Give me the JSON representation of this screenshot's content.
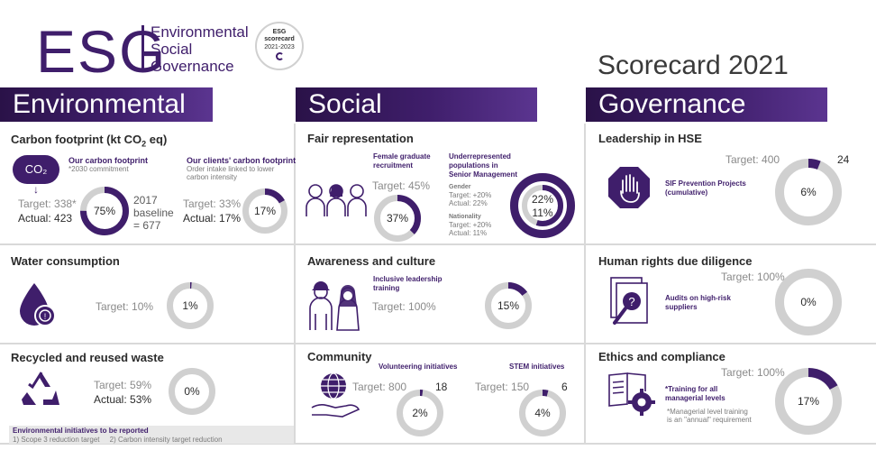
{
  "header": {
    "logo_letters": "ESG",
    "logo_words": [
      "Environmental",
      "Social",
      "Governance"
    ],
    "badge_lines": [
      "ESG",
      "scorecard",
      "2021-2023"
    ],
    "scorecard_title": "Scorecard 2021"
  },
  "colors": {
    "accent": "#3f1e6b",
    "ring_track": "#d0d0d0",
    "ring_fill": "#3f1e6b"
  },
  "sections": {
    "environmental": "Environmental",
    "social": "Social",
    "governance": "Governance"
  },
  "carbon": {
    "title_main": "Carbon footprint (kt CO",
    "title_sub": "2",
    "title_end": " eq)",
    "icon_label": "CO₂",
    "own_title": "Our carbon footprint",
    "own_note": "*2030 commitment",
    "own_target": "Target: 338*",
    "own_actual": "Actual: 423",
    "own_pct": "75%",
    "own_fill": 0.75,
    "baseline": [
      "2017",
      "baseline",
      "= 677"
    ],
    "clients_title": "Our clients' carbon footprint",
    "clients_note": [
      "Order intake linked to lower",
      "carbon intensity"
    ],
    "clients_target": "Target: 33%",
    "clients_actual": "Actual: 17%",
    "clients_pct": "17%",
    "clients_fill": 0.17
  },
  "water": {
    "title": "Water consumption",
    "target": "Target: 10%",
    "pct": "1%",
    "fill": 0.01
  },
  "waste": {
    "title": "Recycled and reused waste",
    "target": "Target: 59%",
    "actual": "Actual: 53%",
    "pct": "0%",
    "fill": 0.0
  },
  "env_footer": {
    "title": "Environmental initiatives to be reported",
    "items": "1) Scope 3 reduction target     2) Carbon intensity target reduction"
  },
  "fair": {
    "title": "Fair representation",
    "female_title": [
      "Female graduate",
      "recruitment"
    ],
    "female_target": "Target: 45%",
    "female_pct": "37%",
    "female_fill": 0.37,
    "under_title": [
      "Underrepresented",
      "populations in",
      "Senior Management"
    ],
    "gender_label": "Gender",
    "gender_target": "Target: +20%",
    "gender_actual": "Actual: 22%",
    "nationality_label": "Nationality",
    "nationality_target": "Target: +20%",
    "nationality_actual": "Actual: 11%",
    "gender_pct": "22%",
    "gender_fill": 1.0,
    "nationality_pct": "11%",
    "nationality_fill": 0.55
  },
  "awareness": {
    "title": "Awareness and culture",
    "item_title": [
      "Inclusive leadership",
      "training"
    ],
    "target": "Target: 100%",
    "pct": "15%",
    "fill": 0.15
  },
  "community": {
    "title": "Community",
    "vol_title": "Volunteering initiatives",
    "vol_target": "Target: 800",
    "vol_count": "18",
    "vol_pct": "2%",
    "vol_fill": 0.02,
    "stem_title": "STEM initiatives",
    "stem_target": "Target: 150",
    "stem_count": "6",
    "stem_pct": "4%",
    "stem_fill": 0.04
  },
  "hse": {
    "title": "Leadership in HSE",
    "target": "Target: 400",
    "count": "24",
    "item_title": [
      "SIF Prevention Projects",
      "(cumulative)"
    ],
    "pct": "6%",
    "fill": 0.06
  },
  "human_rights": {
    "title": "Human rights due diligence",
    "target": "Target: 100%",
    "item_title": [
      "Audits on high-risk",
      "suppliers"
    ],
    "pct": "0%",
    "fill": 0.0
  },
  "ethics": {
    "title": "Ethics and compliance",
    "target": "Target: 100%",
    "item_title": [
      "*Training for all",
      "managerial levels"
    ],
    "note": [
      "*Managerial level training",
      "is an \"annual\" requirement"
    ],
    "pct": "17%",
    "fill": 0.17
  }
}
